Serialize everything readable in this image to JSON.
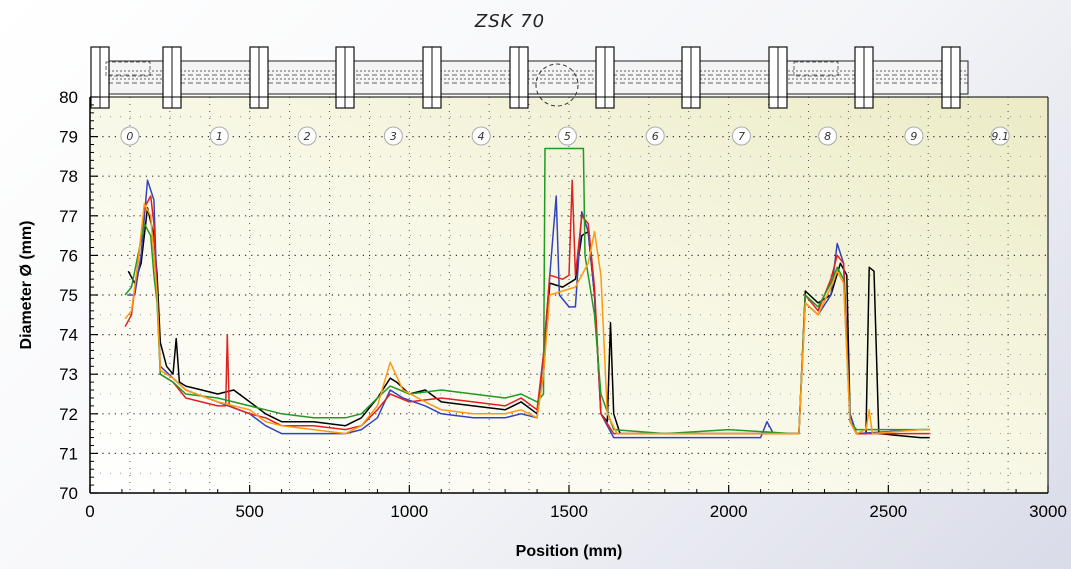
{
  "chart_data": {
    "type": "line",
    "title": "ZSK 70",
    "xlabel": "Position (mm)",
    "ylabel": "Diameter Ø (mm)",
    "xlim": [
      0,
      3000
    ],
    "ylim": [
      70,
      80
    ],
    "x_ticks": [
      "0",
      "500",
      "1000",
      "1500",
      "2000",
      "2500",
      "3000"
    ],
    "y_ticks": [
      "70",
      "71",
      "72",
      "73",
      "74",
      "75",
      "76",
      "77",
      "78",
      "79",
      "80"
    ],
    "grid": "dotted",
    "zone_labels": [
      "0",
      "1",
      "2",
      "3",
      "4",
      "5",
      "6",
      "7",
      "8",
      "9",
      "9.1"
    ],
    "zone_label_positions": [
      125,
      405,
      680,
      950,
      1225,
      1495,
      1770,
      2040,
      2310,
      2580,
      2850
    ],
    "series": [
      {
        "color": "#000000",
        "points": [
          [
            120,
            75.6
          ],
          [
            140,
            75.3
          ],
          [
            160,
            75.8
          ],
          [
            180,
            77.2
          ],
          [
            200,
            76.5
          ],
          [
            210,
            75.5
          ],
          [
            220,
            73.8
          ],
          [
            240,
            73.2
          ],
          [
            260,
            73.0
          ],
          [
            270,
            73.9
          ],
          [
            280,
            72.8
          ],
          [
            300,
            72.7
          ],
          [
            350,
            72.6
          ],
          [
            400,
            72.5
          ],
          [
            450,
            72.6
          ],
          [
            500,
            72.3
          ],
          [
            550,
            72.0
          ],
          [
            600,
            71.8
          ],
          [
            700,
            71.8
          ],
          [
            800,
            71.7
          ],
          [
            850,
            71.9
          ],
          [
            900,
            72.4
          ],
          [
            940,
            72.9
          ],
          [
            960,
            72.8
          ],
          [
            1000,
            72.5
          ],
          [
            1050,
            72.6
          ],
          [
            1100,
            72.3
          ],
          [
            1200,
            72.2
          ],
          [
            1300,
            72.1
          ],
          [
            1350,
            72.3
          ],
          [
            1400,
            72.0
          ],
          [
            1420,
            73.0
          ],
          [
            1440,
            75.3
          ],
          [
            1480,
            75.2
          ],
          [
            1520,
            75.4
          ],
          [
            1540,
            76.5
          ],
          [
            1560,
            76.6
          ],
          [
            1580,
            75.0
          ],
          [
            1600,
            72.0
          ],
          [
            1620,
            71.8
          ],
          [
            1630,
            74.3
          ],
          [
            1640,
            72.0
          ],
          [
            1660,
            71.5
          ],
          [
            1800,
            71.5
          ],
          [
            2000,
            71.5
          ],
          [
            2200,
            71.5
          ],
          [
            2220,
            71.5
          ],
          [
            2240,
            75.1
          ],
          [
            2280,
            74.8
          ],
          [
            2320,
            75.0
          ],
          [
            2350,
            75.8
          ],
          [
            2370,
            75.5
          ],
          [
            2380,
            72.0
          ],
          [
            2400,
            71.5
          ],
          [
            2430,
            71.5
          ],
          [
            2440,
            75.7
          ],
          [
            2455,
            75.6
          ],
          [
            2470,
            71.5
          ],
          [
            2600,
            71.4
          ],
          [
            2630,
            71.4
          ]
        ]
      },
      {
        "color": "#3344bb",
        "points": [
          [
            120,
            75.0
          ],
          [
            140,
            75.0
          ],
          [
            160,
            76.0
          ],
          [
            180,
            77.9
          ],
          [
            200,
            77.4
          ],
          [
            210,
            75.0
          ],
          [
            220,
            73.2
          ],
          [
            260,
            72.9
          ],
          [
            300,
            72.6
          ],
          [
            400,
            72.3
          ],
          [
            500,
            72.0
          ],
          [
            550,
            71.7
          ],
          [
            600,
            71.5
          ],
          [
            700,
            71.5
          ],
          [
            800,
            71.5
          ],
          [
            850,
            71.6
          ],
          [
            900,
            71.9
          ],
          [
            940,
            72.6
          ],
          [
            980,
            72.4
          ],
          [
            1050,
            72.2
          ],
          [
            1100,
            72.0
          ],
          [
            1200,
            71.9
          ],
          [
            1300,
            71.9
          ],
          [
            1350,
            72.0
          ],
          [
            1400,
            71.9
          ],
          [
            1420,
            73.5
          ],
          [
            1440,
            75.5
          ],
          [
            1460,
            77.5
          ],
          [
            1470,
            75.0
          ],
          [
            1500,
            74.7
          ],
          [
            1520,
            74.7
          ],
          [
            1540,
            77.1
          ],
          [
            1560,
            76.6
          ],
          [
            1580,
            75.0
          ],
          [
            1600,
            72.0
          ],
          [
            1640,
            71.4
          ],
          [
            1800,
            71.4
          ],
          [
            2000,
            71.4
          ],
          [
            2100,
            71.4
          ],
          [
            2120,
            71.8
          ],
          [
            2140,
            71.5
          ],
          [
            2200,
            71.5
          ],
          [
            2220,
            71.5
          ],
          [
            2240,
            74.8
          ],
          [
            2280,
            74.5
          ],
          [
            2320,
            75.0
          ],
          [
            2340,
            76.3
          ],
          [
            2360,
            75.8
          ],
          [
            2380,
            72.0
          ],
          [
            2400,
            71.5
          ],
          [
            2600,
            71.6
          ],
          [
            2630,
            71.6
          ]
        ]
      },
      {
        "color": "#dd2222",
        "points": [
          [
            110,
            74.2
          ],
          [
            130,
            74.5
          ],
          [
            150,
            75.8
          ],
          [
            170,
            77.2
          ],
          [
            190,
            77.5
          ],
          [
            200,
            76.8
          ],
          [
            210,
            75.0
          ],
          [
            220,
            73.0
          ],
          [
            260,
            72.8
          ],
          [
            300,
            72.4
          ],
          [
            400,
            72.2
          ],
          [
            425,
            72.2
          ],
          [
            430,
            74.0
          ],
          [
            436,
            72.2
          ],
          [
            500,
            72.0
          ],
          [
            550,
            71.9
          ],
          [
            600,
            71.7
          ],
          [
            700,
            71.7
          ],
          [
            800,
            71.6
          ],
          [
            850,
            71.7
          ],
          [
            900,
            72.1
          ],
          [
            940,
            72.5
          ],
          [
            1000,
            72.3
          ],
          [
            1100,
            72.4
          ],
          [
            1200,
            72.3
          ],
          [
            1300,
            72.2
          ],
          [
            1350,
            72.4
          ],
          [
            1400,
            72.1
          ],
          [
            1420,
            73.5
          ],
          [
            1440,
            75.5
          ],
          [
            1480,
            75.4
          ],
          [
            1500,
            75.5
          ],
          [
            1510,
            77.9
          ],
          [
            1520,
            75.5
          ],
          [
            1540,
            77.0
          ],
          [
            1560,
            76.8
          ],
          [
            1580,
            75.2
          ],
          [
            1600,
            72.0
          ],
          [
            1640,
            71.5
          ],
          [
            1800,
            71.5
          ],
          [
            2000,
            71.5
          ],
          [
            2200,
            71.5
          ],
          [
            2220,
            71.5
          ],
          [
            2240,
            75.0
          ],
          [
            2280,
            74.6
          ],
          [
            2320,
            75.4
          ],
          [
            2340,
            76.0
          ],
          [
            2360,
            75.8
          ],
          [
            2380,
            71.8
          ],
          [
            2400,
            71.5
          ],
          [
            2600,
            71.5
          ],
          [
            2630,
            71.5
          ]
        ]
      },
      {
        "color": "#229922",
        "points": [
          [
            110,
            75.0
          ],
          [
            130,
            75.2
          ],
          [
            150,
            76.0
          ],
          [
            170,
            76.8
          ],
          [
            190,
            76.5
          ],
          [
            200,
            75.5
          ],
          [
            210,
            74.8
          ],
          [
            220,
            73.0
          ],
          [
            260,
            72.8
          ],
          [
            300,
            72.5
          ],
          [
            400,
            72.4
          ],
          [
            500,
            72.2
          ],
          [
            550,
            72.1
          ],
          [
            600,
            72.0
          ],
          [
            700,
            71.9
          ],
          [
            800,
            71.9
          ],
          [
            850,
            72.0
          ],
          [
            900,
            72.4
          ],
          [
            940,
            72.7
          ],
          [
            1000,
            72.5
          ],
          [
            1100,
            72.6
          ],
          [
            1200,
            72.5
          ],
          [
            1300,
            72.4
          ],
          [
            1350,
            72.5
          ],
          [
            1400,
            72.3
          ],
          [
            1420,
            72.5
          ],
          [
            1425,
            78.7
          ],
          [
            1545,
            78.7
          ],
          [
            1550,
            76.0
          ],
          [
            1580,
            74.5
          ],
          [
            1600,
            72.5
          ],
          [
            1640,
            71.6
          ],
          [
            1800,
            71.5
          ],
          [
            2000,
            71.6
          ],
          [
            2200,
            71.5
          ],
          [
            2220,
            71.5
          ],
          [
            2240,
            75.0
          ],
          [
            2280,
            74.7
          ],
          [
            2320,
            75.3
          ],
          [
            2340,
            75.7
          ],
          [
            2360,
            75.4
          ],
          [
            2380,
            71.8
          ],
          [
            2400,
            71.6
          ],
          [
            2600,
            71.6
          ],
          [
            2630,
            71.6
          ]
        ]
      },
      {
        "color": "#ff9910",
        "points": [
          [
            110,
            74.4
          ],
          [
            130,
            74.6
          ],
          [
            150,
            75.8
          ],
          [
            170,
            77.3
          ],
          [
            190,
            77.0
          ],
          [
            200,
            76.0
          ],
          [
            210,
            75.0
          ],
          [
            220,
            73.1
          ],
          [
            260,
            72.9
          ],
          [
            300,
            72.6
          ],
          [
            400,
            72.3
          ],
          [
            500,
            72.1
          ],
          [
            550,
            71.8
          ],
          [
            600,
            71.7
          ],
          [
            700,
            71.6
          ],
          [
            800,
            71.5
          ],
          [
            850,
            71.7
          ],
          [
            900,
            72.2
          ],
          [
            940,
            73.3
          ],
          [
            980,
            72.6
          ],
          [
            1050,
            72.3
          ],
          [
            1100,
            72.1
          ],
          [
            1200,
            72.0
          ],
          [
            1300,
            72.0
          ],
          [
            1350,
            72.1
          ],
          [
            1400,
            71.9
          ],
          [
            1420,
            73.0
          ],
          [
            1440,
            75.0
          ],
          [
            1480,
            75.1
          ],
          [
            1520,
            75.2
          ],
          [
            1560,
            75.8
          ],
          [
            1580,
            76.6
          ],
          [
            1600,
            75.5
          ],
          [
            1620,
            72.0
          ],
          [
            1650,
            71.5
          ],
          [
            1800,
            71.5
          ],
          [
            2000,
            71.5
          ],
          [
            2200,
            71.5
          ],
          [
            2220,
            71.5
          ],
          [
            2240,
            74.8
          ],
          [
            2280,
            74.5
          ],
          [
            2320,
            75.2
          ],
          [
            2340,
            75.6
          ],
          [
            2360,
            75.3
          ],
          [
            2380,
            71.8
          ],
          [
            2400,
            71.5
          ],
          [
            2430,
            71.6
          ],
          [
            2440,
            72.1
          ],
          [
            2450,
            71.5
          ],
          [
            2600,
            71.6
          ],
          [
            2630,
            71.6
          ]
        ]
      }
    ]
  }
}
